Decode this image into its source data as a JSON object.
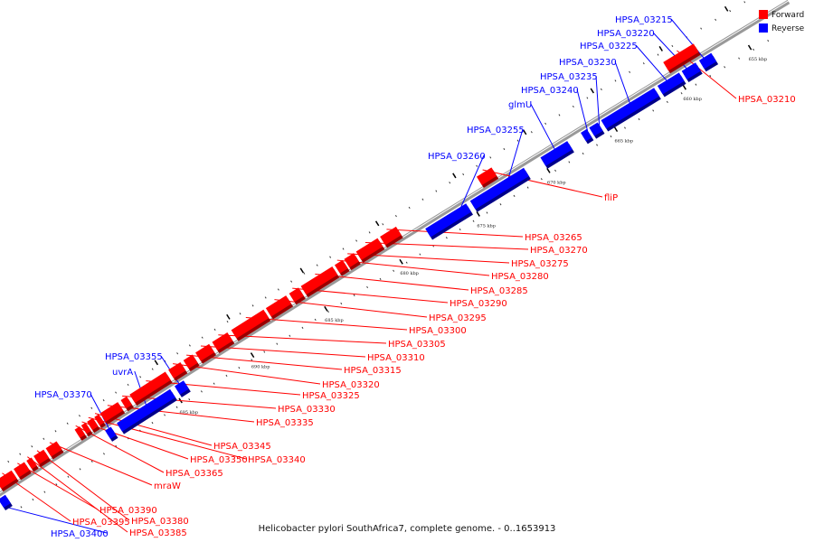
{
  "caption": "Helicobacter pylori SouthAfrica7, complete genome. - 0..1653913",
  "legend": [
    {
      "label": "Forward",
      "color": "#ff0000"
    },
    {
      "label": "Reverse",
      "color": "#0000ff"
    }
  ],
  "colors": {
    "forward": "#ff0000",
    "reverse": "#0000ff",
    "backbone": "#999999"
  },
  "ticks": [
    "655 kbp",
    "660 kbp",
    "665 kbp",
    "670 kbp",
    "675 kbp",
    "680 kbp",
    "685 kbp",
    "690 kbp",
    "695 kbp"
  ],
  "genes": [
    {
      "name": "HPSA_03215",
      "strand": "reverse"
    },
    {
      "name": "HPSA_03220",
      "strand": "reverse"
    },
    {
      "name": "HPSA_03225",
      "strand": "reverse"
    },
    {
      "name": "HPSA_03230",
      "strand": "reverse"
    },
    {
      "name": "HPSA_03235",
      "strand": "reverse"
    },
    {
      "name": "HPSA_03240",
      "strand": "reverse"
    },
    {
      "name": "glmU",
      "strand": "reverse"
    },
    {
      "name": "HPSA_03255",
      "strand": "reverse"
    },
    {
      "name": "HPSA_03260",
      "strand": "reverse"
    },
    {
      "name": "HPSA_03355",
      "strand": "reverse"
    },
    {
      "name": "uvrA",
      "strand": "reverse"
    },
    {
      "name": "HPSA_03370",
      "strand": "reverse"
    },
    {
      "name": "HPSA_03400",
      "strand": "reverse"
    },
    {
      "name": "HPSA_03210",
      "strand": "forward"
    },
    {
      "name": "fliP",
      "strand": "forward"
    },
    {
      "name": "HPSA_03265",
      "strand": "forward"
    },
    {
      "name": "HPSA_03270",
      "strand": "forward"
    },
    {
      "name": "HPSA_03275",
      "strand": "forward"
    },
    {
      "name": "HPSA_03280",
      "strand": "forward"
    },
    {
      "name": "HPSA_03285",
      "strand": "forward"
    },
    {
      "name": "HPSA_03290",
      "strand": "forward"
    },
    {
      "name": "HPSA_03295",
      "strand": "forward"
    },
    {
      "name": "HPSA_03300",
      "strand": "forward"
    },
    {
      "name": "HPSA_03305",
      "strand": "forward"
    },
    {
      "name": "HPSA_03310",
      "strand": "forward"
    },
    {
      "name": "HPSA_03315",
      "strand": "forward"
    },
    {
      "name": "HPSA_03320",
      "strand": "forward"
    },
    {
      "name": "HPSA_03325",
      "strand": "forward"
    },
    {
      "name": "HPSA_03330",
      "strand": "forward"
    },
    {
      "name": "HPSA_03335",
      "strand": "forward"
    },
    {
      "name": "HPSA_03340",
      "strand": "forward"
    },
    {
      "name": "HPSA_03345",
      "strand": "forward"
    },
    {
      "name": "HPSA_03350",
      "strand": "forward"
    },
    {
      "name": "HPSA_03365",
      "strand": "forward"
    },
    {
      "name": "mraW",
      "strand": "forward"
    },
    {
      "name": "HPSA_03380",
      "strand": "forward"
    },
    {
      "name": "HPSA_03385",
      "strand": "forward"
    },
    {
      "name": "HPSA_03390",
      "strand": "forward"
    },
    {
      "name": "HPSA_03395",
      "strand": "forward"
    }
  ]
}
